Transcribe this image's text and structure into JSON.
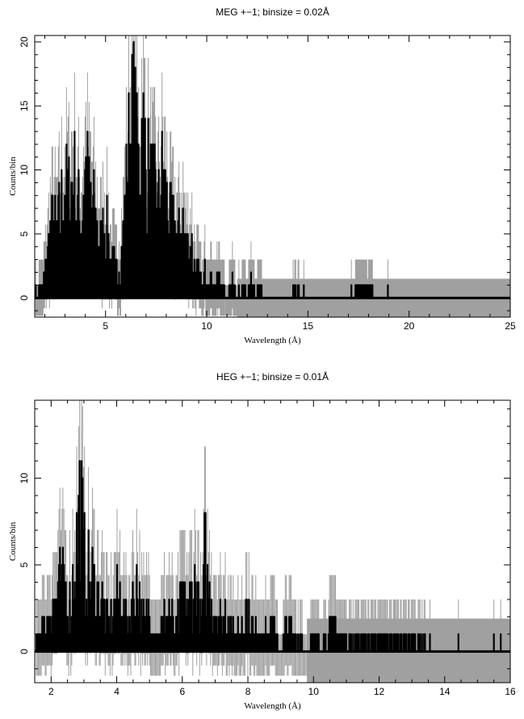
{
  "chart_data": [
    {
      "type": "line",
      "title": "MEG +−1; binsize = 0.02Å",
      "xlabel": "Wavelength (Å)",
      "ylabel": "Counts/bin",
      "xlim": [
        1.5,
        25
      ],
      "ylim": [
        -1.5,
        20.5
      ],
      "xticks": [
        5,
        10,
        15,
        20,
        25
      ],
      "yticks": [
        0,
        5,
        10,
        15,
        20
      ],
      "grid": false,
      "colors": {
        "data": "#000000",
        "errors": "#a0a0a0",
        "model": "#000000"
      },
      "model_level": 0,
      "series": [
        {
          "x": [
            1.6,
            1.8,
            2.0,
            2.2,
            2.4,
            2.6,
            2.8,
            3.0,
            3.2,
            3.4,
            3.6,
            3.8,
            4.0,
            4.2,
            4.4,
            4.6,
            4.8,
            5.0,
            5.2,
            5.4,
            5.6,
            5.8,
            6.0,
            6.2,
            6.4,
            6.6,
            6.8,
            7.0,
            7.2,
            7.4,
            7.6,
            7.8,
            8.0,
            8.2,
            8.4,
            8.6,
            8.8,
            9.0,
            9.2,
            9.4,
            9.6,
            9.8,
            10.0,
            10.2,
            10.4,
            10.6,
            10.8,
            11.0,
            11.2,
            11.4,
            11.6,
            11.8,
            12.0,
            12.2,
            12.4,
            12.6,
            13.0,
            14.0,
            14.4,
            14.8,
            15.5,
            16.5,
            17.5,
            17.9,
            19.0,
            21.0,
            23.0,
            25.0
          ],
          "y": [
            0,
            1,
            2,
            5,
            7,
            6,
            8,
            10,
            9,
            11,
            8,
            7,
            12,
            9,
            8,
            6,
            5,
            7,
            4,
            3,
            2,
            4,
            9,
            14,
            16,
            11,
            15,
            12,
            10,
            9,
            8,
            11,
            9,
            7,
            6,
            5,
            7,
            4,
            5,
            3,
            2,
            1,
            3,
            2,
            1,
            2,
            1,
            0,
            2,
            1,
            0,
            1,
            0,
            2,
            0,
            1,
            0,
            0,
            1,
            0,
            0,
            0,
            1,
            1,
            0,
            0,
            0,
            0
          ]
        }
      ]
    },
    {
      "type": "line",
      "title": "HEG +−1; binsize = 0.01Å",
      "xlabel": "Wavelength (Å)",
      "ylabel": "Counts/bin",
      "xlim": [
        1.5,
        16
      ],
      "ylim": [
        -1.8,
        14.5
      ],
      "xticks": [
        2,
        4,
        6,
        8,
        10,
        12,
        14,
        16
      ],
      "yticks": [
        0,
        5,
        10
      ],
      "grid": false,
      "colors": {
        "data": "#000000",
        "errors": "#a0a0a0",
        "model": "#000000"
      },
      "model_level": 0,
      "series": [
        {
          "x": [
            1.6,
            1.8,
            2.0,
            2.2,
            2.4,
            2.6,
            2.8,
            2.9,
            3.0,
            3.2,
            3.4,
            3.6,
            3.8,
            4.0,
            4.2,
            4.4,
            4.6,
            4.8,
            5.0,
            5.2,
            5.4,
            5.6,
            5.8,
            6.0,
            6.2,
            6.4,
            6.6,
            6.7,
            6.8,
            7.0,
            7.2,
            7.4,
            7.6,
            7.8,
            8.0,
            8.2,
            8.4,
            8.6,
            8.8,
            9.0,
            9.2,
            9.4,
            9.6,
            9.8,
            10.0,
            10.4,
            10.7,
            11.0,
            11.8,
            12.45,
            12.9,
            14.0,
            16.0
          ],
          "y": [
            1,
            2,
            3,
            4,
            5,
            3,
            8,
            11,
            6,
            5,
            4,
            3,
            2,
            4,
            3,
            2,
            5,
            2,
            3,
            1,
            2,
            3,
            1,
            4,
            3,
            5,
            2,
            7,
            4,
            3,
            2,
            3,
            1,
            2,
            3,
            1,
            2,
            1,
            2,
            0,
            2,
            1,
            1,
            0,
            1,
            1,
            2,
            1,
            1,
            1,
            1,
            0,
            0
          ]
        }
      ]
    }
  ]
}
